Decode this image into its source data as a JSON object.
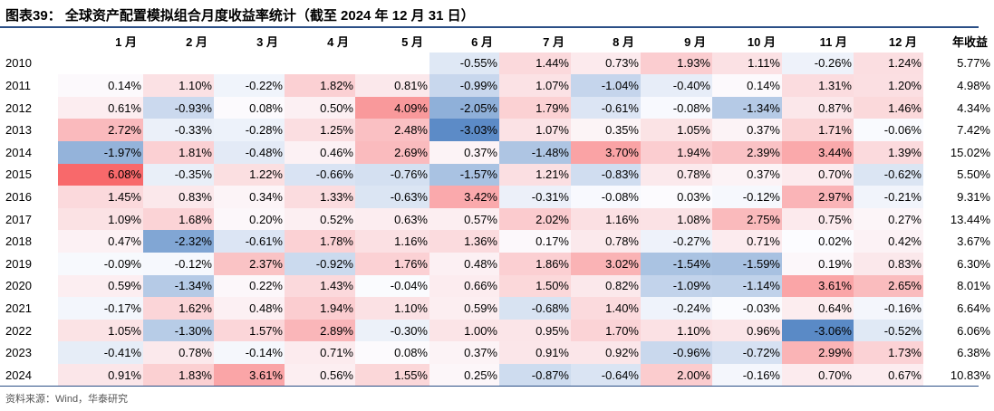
{
  "title": "图表39：  全球资产配置模拟组合月度收益率统计（截至 2024 年 12 月 31 日）",
  "headers": [
    "",
    "1 月",
    "2 月",
    "3 月",
    "4 月",
    "5 月",
    "6 月",
    "7 月",
    "8 月",
    "9 月",
    "10 月",
    "11 月",
    "12 月",
    "年收益"
  ],
  "rows": [
    {
      "year": "2010",
      "months": [
        "",
        "",
        "",
        "",
        "",
        "-0.55%",
        "1.44%",
        "0.73%",
        "1.93%",
        "1.11%",
        "-0.26%",
        "1.24%"
      ],
      "annual": "5.77%"
    },
    {
      "year": "2011",
      "months": [
        "0.14%",
        "1.10%",
        "-0.22%",
        "1.82%",
        "0.81%",
        "-0.99%",
        "1.07%",
        "-1.04%",
        "-0.40%",
        "0.14%",
        "1.31%",
        "1.20%"
      ],
      "annual": "4.98%"
    },
    {
      "year": "2012",
      "months": [
        "0.61%",
        "-0.93%",
        "0.08%",
        "0.50%",
        "4.09%",
        "-2.05%",
        "1.79%",
        "-0.61%",
        "-0.08%",
        "-1.34%",
        "0.87%",
        "1.46%"
      ],
      "annual": "4.34%"
    },
    {
      "year": "2013",
      "months": [
        "2.72%",
        "-0.33%",
        "-0.28%",
        "1.25%",
        "2.48%",
        "-3.03%",
        "1.07%",
        "0.35%",
        "1.05%",
        "0.37%",
        "1.71%",
        "-0.06%"
      ],
      "annual": "7.42%"
    },
    {
      "year": "2014",
      "months": [
        "-1.97%",
        "1.81%",
        "-0.48%",
        "0.46%",
        "2.69%",
        "0.37%",
        "-1.48%",
        "3.70%",
        "1.94%",
        "2.39%",
        "3.44%",
        "1.39%"
      ],
      "annual": "15.02%"
    },
    {
      "year": "2015",
      "months": [
        "6.08%",
        "-0.35%",
        "1.22%",
        "-0.66%",
        "-0.76%",
        "-1.57%",
        "1.21%",
        "-0.83%",
        "0.78%",
        "0.37%",
        "0.70%",
        "-0.62%"
      ],
      "annual": "5.50%"
    },
    {
      "year": "2016",
      "months": [
        "1.45%",
        "0.83%",
        "0.34%",
        "1.33%",
        "-0.63%",
        "3.42%",
        "-0.31%",
        "-0.08%",
        "0.03%",
        "-0.12%",
        "2.97%",
        "-0.21%"
      ],
      "annual": "9.31%"
    },
    {
      "year": "2017",
      "months": [
        "1.09%",
        "1.68%",
        "0.20%",
        "0.52%",
        "0.63%",
        "0.57%",
        "2.02%",
        "1.16%",
        "1.08%",
        "2.75%",
        "0.75%",
        "0.27%"
      ],
      "annual": "13.44%"
    },
    {
      "year": "2018",
      "months": [
        "0.47%",
        "-2.32%",
        "-0.61%",
        "1.78%",
        "1.16%",
        "1.36%",
        "0.17%",
        "0.78%",
        "-0.27%",
        "0.71%",
        "0.02%",
        "0.42%"
      ],
      "annual": "3.67%"
    },
    {
      "year": "2019",
      "months": [
        "-0.09%",
        "-0.12%",
        "2.37%",
        "-0.92%",
        "1.76%",
        "0.48%",
        "1.86%",
        "3.02%",
        "-1.54%",
        "-1.59%",
        "0.19%",
        "0.83%"
      ],
      "annual": "6.30%"
    },
    {
      "year": "2020",
      "months": [
        "0.59%",
        "-1.34%",
        "0.22%",
        "1.43%",
        "-0.04%",
        "0.66%",
        "1.50%",
        "0.82%",
        "-1.09%",
        "-1.14%",
        "3.61%",
        "2.65%"
      ],
      "annual": "8.01%"
    },
    {
      "year": "2021",
      "months": [
        "-0.17%",
        "1.62%",
        "0.48%",
        "1.94%",
        "1.10%",
        "0.59%",
        "-0.68%",
        "1.40%",
        "-0.24%",
        "-0.03%",
        "0.64%",
        "-0.16%"
      ],
      "annual": "6.64%"
    },
    {
      "year": "2022",
      "months": [
        "1.05%",
        "-1.30%",
        "1.57%",
        "2.89%",
        "-0.30%",
        "1.00%",
        "0.95%",
        "1.70%",
        "1.10%",
        "0.96%",
        "-3.06%",
        "-0.52%"
      ],
      "annual": "6.06%"
    },
    {
      "year": "2023",
      "months": [
        "-0.41%",
        "0.78%",
        "-0.14%",
        "0.71%",
        "0.08%",
        "0.37%",
        "0.91%",
        "0.92%",
        "-0.96%",
        "-0.72%",
        "2.99%",
        "1.73%"
      ],
      "annual": "6.38%"
    },
    {
      "year": "2024",
      "months": [
        "0.91%",
        "1.83%",
        "3.61%",
        "0.56%",
        "1.55%",
        "0.25%",
        "-0.87%",
        "-0.64%",
        "2.00%",
        "-0.16%",
        "0.70%",
        "0.67%"
      ],
      "annual": "10.83%"
    }
  ],
  "colors": {
    "positive": "#f8696b",
    "negative": "#5a8ac6",
    "neutral": "#fcfcff",
    "rule": "#2b4f86"
  },
  "source": "资料来源：Wind，华泰研究"
}
